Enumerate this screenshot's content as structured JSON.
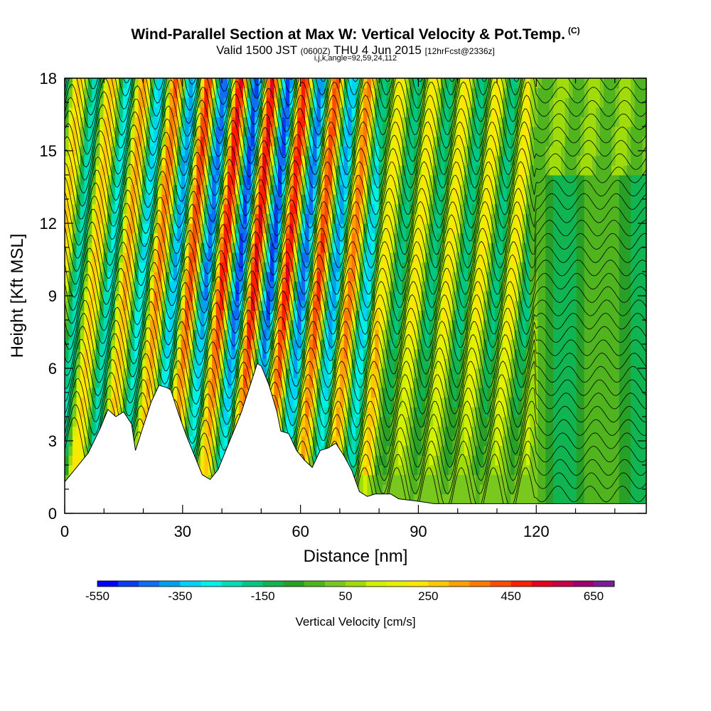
{
  "header": {
    "title": "Wind-Parallel Section at Max W: Vertical Velocity & Pot.Temp.",
    "copyright": "(C)",
    "valid_prefix": "Valid 1500 JST",
    "valid_utc": "(0600Z)",
    "valid_date": "THU 4 Jun 2015",
    "forecast": "[12hrFcst@2336z]",
    "params": "i,j,k,angle=92,59,24,112"
  },
  "chart_data": {
    "type": "heatmap",
    "xlabel": "Distance [nm]",
    "ylabel": "Height [Kft MSL]",
    "xlim": [
      0,
      148
    ],
    "ylim": [
      0,
      18
    ],
    "x_ticks": [
      0,
      30,
      60,
      90,
      120
    ],
    "y_ticks": [
      0,
      3,
      6,
      9,
      12,
      15,
      18
    ],
    "colorbar": {
      "label": "Vertical Velocity [cm/s]",
      "tick_labels": [
        "-550",
        "-350",
        "-150",
        "50",
        "250",
        "450",
        "650"
      ],
      "tick_values": [
        -550,
        -350,
        -150,
        50,
        250,
        450,
        650
      ],
      "bins": [
        -550,
        -500,
        -450,
        -400,
        -350,
        -300,
        -250,
        -200,
        -150,
        -100,
        -50,
        0,
        50,
        100,
        150,
        200,
        250,
        300,
        350,
        400,
        450,
        500,
        550,
        600,
        650
      ],
      "colors": [
        "#0000ff",
        "#0a3cf5",
        "#0f6ef5",
        "#00a0f0",
        "#00d2f5",
        "#00f0e6",
        "#00dcb4",
        "#00c882",
        "#10b450",
        "#28a028",
        "#50b41e",
        "#78c81e",
        "#a0dc0a",
        "#d2f000",
        "#e6f000",
        "#ffe600",
        "#ffc800",
        "#ffa000",
        "#ff7800",
        "#ff4b00",
        "#ff1e00",
        "#e6001e",
        "#c80046",
        "#a0006e",
        "#781e96"
      ]
    },
    "wave_crests_x_nm": [
      5,
      12,
      19,
      28,
      36,
      44,
      55,
      63,
      71,
      79,
      87,
      95,
      103,
      111,
      119
    ],
    "terrain_kft": [
      [
        0,
        1.3
      ],
      [
        3,
        1.9
      ],
      [
        6,
        2.5
      ],
      [
        9,
        3.5
      ],
      [
        11,
        4.3
      ],
      [
        13,
        4.0
      ],
      [
        15,
        4.2
      ],
      [
        17,
        3.7
      ],
      [
        18,
        2.6
      ],
      [
        20,
        3.6
      ],
      [
        22,
        4.6
      ],
      [
        24,
        5.3
      ],
      [
        26,
        5.2
      ],
      [
        27,
        5.1
      ],
      [
        29,
        4.1
      ],
      [
        31,
        3.2
      ],
      [
        33,
        2.4
      ],
      [
        35,
        1.6
      ],
      [
        37,
        1.4
      ],
      [
        39,
        1.8
      ],
      [
        41,
        2.6
      ],
      [
        43,
        3.4
      ],
      [
        45,
        4.2
      ],
      [
        47,
        5.2
      ],
      [
        49,
        6.2
      ],
      [
        50,
        6.1
      ],
      [
        52,
        5.3
      ],
      [
        54,
        4.2
      ],
      [
        55,
        3.4
      ],
      [
        57,
        3.3
      ],
      [
        59,
        2.6
      ],
      [
        61,
        2.2
      ],
      [
        63,
        1.9
      ],
      [
        65,
        2.6
      ],
      [
        67,
        2.7
      ],
      [
        69,
        2.9
      ],
      [
        71,
        2.4
      ],
      [
        73,
        1.8
      ],
      [
        75,
        0.9
      ],
      [
        77,
        0.7
      ],
      [
        79,
        0.8
      ],
      [
        83,
        0.8
      ],
      [
        85,
        0.6
      ],
      [
        90,
        0.5
      ],
      [
        94,
        0.4
      ],
      [
        148,
        0.4
      ]
    ]
  }
}
